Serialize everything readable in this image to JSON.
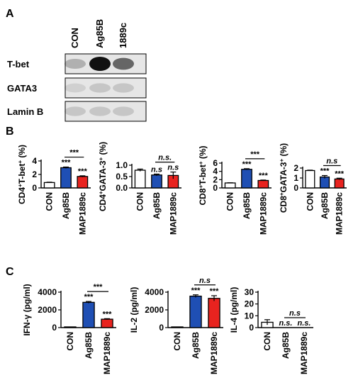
{
  "panel_letters": [
    "A",
    "B",
    "C"
  ],
  "blot": {
    "lanes": [
      "CON",
      "Ag85B",
      "1889c"
    ],
    "rows": [
      {
        "label": "T-bet",
        "intensity": [
          0.25,
          1.0,
          0.6
        ]
      },
      {
        "label": "GATA3",
        "intensity": [
          0.1,
          0.15,
          0.15
        ]
      },
      {
        "label": "Lamin B",
        "intensity": [
          0.15,
          0.15,
          0.15
        ]
      }
    ]
  },
  "colors": {
    "con": "#ffffff",
    "ag85b": "#1f4fb4",
    "map1889c": "#e8231f",
    "blot_bg": "#e6e6e6",
    "blot_band": "#111111"
  },
  "chart_data": [
    {
      "type": "bar",
      "panel": "B",
      "ylabel": "CD4+T-bet+ (%)",
      "ylabel_base": "CD4",
      "ylabel_sup1": "+",
      "ylabel_mid": "T-bet",
      "ylabel_sup2": "+",
      "ylabel_tail": " (%)",
      "categories": [
        "CON",
        "Ag85B",
        "MAP1889c"
      ],
      "values": [
        0.8,
        3.0,
        1.7
      ],
      "errors": [
        0.05,
        0.1,
        0.1
      ],
      "ylim": [
        0,
        4
      ],
      "yticks": [
        "0",
        "2",
        "4"
      ],
      "ytick_values": [
        0,
        2,
        4
      ],
      "bar_sig": [
        "",
        "***",
        "***"
      ],
      "bracket": "***"
    },
    {
      "type": "bar",
      "panel": "B",
      "ylabel": "CD4+GATA-3+ (%)",
      "ylabel_base": "CD4",
      "ylabel_sup1": "+",
      "ylabel_mid": "GATA-3",
      "ylabel_sup2": "+",
      "ylabel_tail": " (%)",
      "categories": [
        "CON",
        "Ag85B",
        "MAP1889c"
      ],
      "values": [
        0.78,
        0.57,
        0.55
      ],
      "errors": [
        0.05,
        0.04,
        0.15
      ],
      "ylim": [
        0,
        1.0
      ],
      "yticks": [
        "0.0",
        "0.5",
        "1.0"
      ],
      "ytick_values": [
        0,
        0.5,
        1.0
      ],
      "bar_sig": [
        "",
        "n.s",
        "n.s"
      ],
      "bracket": "n.s."
    },
    {
      "type": "bar",
      "panel": "B",
      "ylabel": "CD8+T-bet+ (%)",
      "ylabel_base": "CD8",
      "ylabel_sup1": "+",
      "ylabel_mid": "T-bet",
      "ylabel_sup2": "+",
      "ylabel_tail": " (%)",
      "categories": [
        "CON",
        "Ag85B",
        "MAP1889c"
      ],
      "values": [
        1.2,
        4.5,
        1.8
      ],
      "errors": [
        0.05,
        0.15,
        0.1
      ],
      "ylim": [
        0,
        6
      ],
      "yticks": [
        "0",
        "2",
        "4",
        "6"
      ],
      "ytick_values": [
        0,
        2,
        4,
        6
      ],
      "bar_sig": [
        "",
        "***",
        "***"
      ],
      "bracket": "***"
    },
    {
      "type": "bar",
      "panel": "B",
      "ylabel": "CD8+GATA-3+ (%)",
      "ylabel_base": "CD8",
      "ylabel_sup1": "+",
      "ylabel_mid": "GATA-3",
      "ylabel_sup2": "+",
      "ylabel_tail": " (%)",
      "categories": [
        "CON",
        "Ag85B",
        "MAP1889c"
      ],
      "values": [
        1.75,
        1.1,
        0.9
      ],
      "errors": [
        0.04,
        0.15,
        0.08
      ],
      "ylim": [
        0,
        2
      ],
      "yticks": [
        "0",
        "1",
        "2"
      ],
      "ytick_values": [
        0,
        1,
        2
      ],
      "bar_sig": [
        "",
        "***",
        "***"
      ],
      "bracket": "n.s"
    },
    {
      "type": "bar",
      "panel": "C",
      "ylabel": "IFN-γ (pg/ml)",
      "ylabel_base": "IFN-γ (pg/ml)",
      "ylabel_sup1": "",
      "ylabel_mid": "",
      "ylabel_sup2": "",
      "ylabel_tail": "",
      "categories": [
        "CON",
        "Ag85B",
        "MAP1889c"
      ],
      "values": [
        20,
        2850,
        950
      ],
      "errors": [
        5,
        100,
        60
      ],
      "ylim": [
        0,
        4000
      ],
      "yticks": [
        "0",
        "2000",
        "4000"
      ],
      "ytick_values": [
        0,
        2000,
        4000
      ],
      "bar_sig": [
        "",
        "***",
        "***"
      ],
      "bracket": "***"
    },
    {
      "type": "bar",
      "panel": "C",
      "ylabel": "IL-2 (pg/ml)",
      "ylabel_base": "IL-2 (pg/ml)",
      "ylabel_sup1": "",
      "ylabel_mid": "",
      "ylabel_sup2": "",
      "ylabel_tail": "",
      "categories": [
        "CON",
        "Ag85B",
        "MAP1889c"
      ],
      "values": [
        20,
        3550,
        3300
      ],
      "errors": [
        5,
        150,
        300
      ],
      "ylim": [
        0,
        4000
      ],
      "yticks": [
        "0",
        "2000",
        "4000"
      ],
      "ytick_values": [
        0,
        2000,
        4000
      ],
      "bar_sig": [
        "",
        "***",
        "***"
      ],
      "bracket": "n.s"
    },
    {
      "type": "bar",
      "panel": "C",
      "ylabel": "IL-4 (pg/ml)",
      "ylabel_base": "IL-4 (pg/ml)",
      "ylabel_sup1": "",
      "ylabel_mid": "",
      "ylabel_sup2": "",
      "ylabel_tail": "",
      "categories": [
        "CON",
        "Ag85B",
        "MAP1889c"
      ],
      "values": [
        4.5,
        0,
        0
      ],
      "errors": [
        2.2,
        0,
        0
      ],
      "ylim": [
        0,
        30
      ],
      "yticks": [
        "0",
        "10",
        "20",
        "30"
      ],
      "ytick_values": [
        0,
        10,
        20,
        30
      ],
      "bar_sig": [
        "",
        "n.s.",
        "n.s."
      ],
      "bracket": "n.s"
    }
  ]
}
